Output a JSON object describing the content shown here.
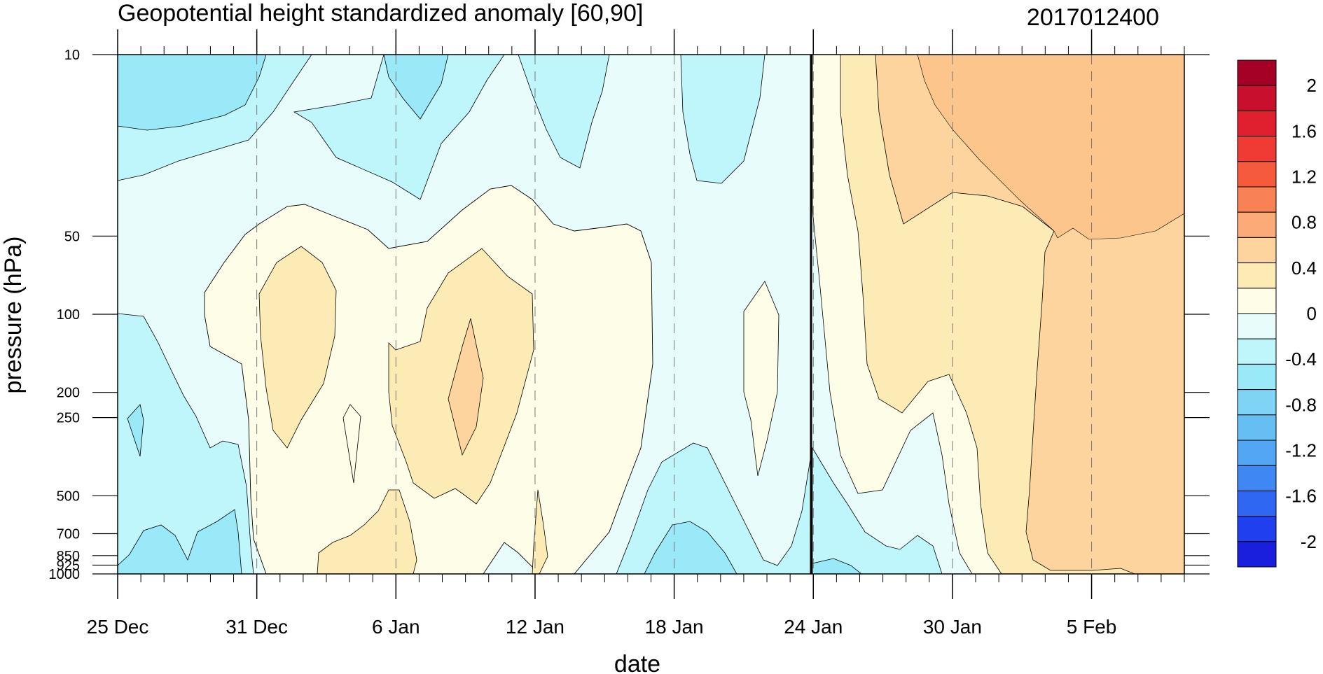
{
  "chart_data": {
    "type": "heatmap",
    "title": "Geopotential height standardized anomaly [60,90]",
    "subtitle": "2017012400",
    "xlabel": "date",
    "ylabel": "pressure (hPa)",
    "x_range_days": [
      "2016-12-25",
      "2017-02-09"
    ],
    "x_ticks": [
      {
        "date": "2016-12-25",
        "label": "25 Dec"
      },
      {
        "date": "2016-12-31",
        "label": "31 Dec"
      },
      {
        "date": "2017-01-06",
        "label": "6 Jan"
      },
      {
        "date": "2017-01-12",
        "label": "12 Jan"
      },
      {
        "date": "2017-01-18",
        "label": "18 Jan"
      },
      {
        "date": "2017-01-24",
        "label": "24 Jan"
      },
      {
        "date": "2017-01-30",
        "label": "30 Jan"
      },
      {
        "date": "2017-02-05",
        "label": "5 Feb"
      }
    ],
    "y_scale": "log",
    "y_range_hPa": [
      1000,
      10
    ],
    "y_ticks": [
      {
        "p": 10,
        "label": "10"
      },
      {
        "p": 50,
        "label": "50"
      },
      {
        "p": 100,
        "label": "100"
      },
      {
        "p": 200,
        "label": "200"
      },
      {
        "p": 250,
        "label": "250"
      },
      {
        "p": 500,
        "label": "500"
      },
      {
        "p": 700,
        "label": "700"
      },
      {
        "p": 850,
        "label": "850"
      },
      {
        "p": 925,
        "label": "925"
      },
      {
        "p": 1000,
        "label": "1000"
      }
    ],
    "analysis_date_marker": "2017-01-24",
    "colorbar": {
      "levels": [
        -2,
        -1.8,
        -1.6,
        -1.4,
        -1.2,
        -1.0,
        -0.8,
        -0.6,
        -0.4,
        -0.2,
        0,
        0.2,
        0.4,
        0.6,
        0.8,
        1.0,
        1.2,
        1.4,
        1.6,
        1.8,
        2
      ],
      "labels": [
        {
          "v": 2,
          "text": "2"
        },
        {
          "v": 1.6,
          "text": "1.6"
        },
        {
          "v": 1.2,
          "text": "1.2"
        },
        {
          "v": 0.8,
          "text": "0.8"
        },
        {
          "v": 0.4,
          "text": "0.4"
        },
        {
          "v": 0,
          "text": "0"
        },
        {
          "v": -0.4,
          "text": "-0.4"
        },
        {
          "v": -0.8,
          "text": "-0.8"
        },
        {
          "v": -1.2,
          "text": "-1.2"
        },
        {
          "v": -1.6,
          "text": "-1.6"
        },
        {
          "v": -2,
          "text": "-2"
        }
      ],
      "colors_top_to_bottom": [
        "#a50026",
        "#c8102e",
        "#e0202f",
        "#f03a34",
        "#f55a3c",
        "#f88255",
        "#fbaa78",
        "#fdd49e",
        "#fdebb5",
        "#fefde8",
        "#e8fcfc",
        "#bff6fb",
        "#9ae9f8",
        "#7fd4f5",
        "#66bff3",
        "#52a6f4",
        "#3f87f2",
        "#2f66f2",
        "#2040f0",
        "#1a1fdd"
      ]
    },
    "regions": [
      {
        "value": -0.5,
        "fill": "#bff6fb"
      },
      {
        "value": -0.7,
        "fill": "#9ae9f8"
      },
      {
        "value": -0.1,
        "fill": "#e8fcfc"
      },
      {
        "value": 0.1,
        "fill": "#fefde8"
      },
      {
        "value": 0.3,
        "fill": "#fdebb5"
      },
      {
        "value": 0.5,
        "fill": "#fdd49e"
      },
      {
        "value": 0.7,
        "fill": "#fbc58b"
      }
    ]
  }
}
